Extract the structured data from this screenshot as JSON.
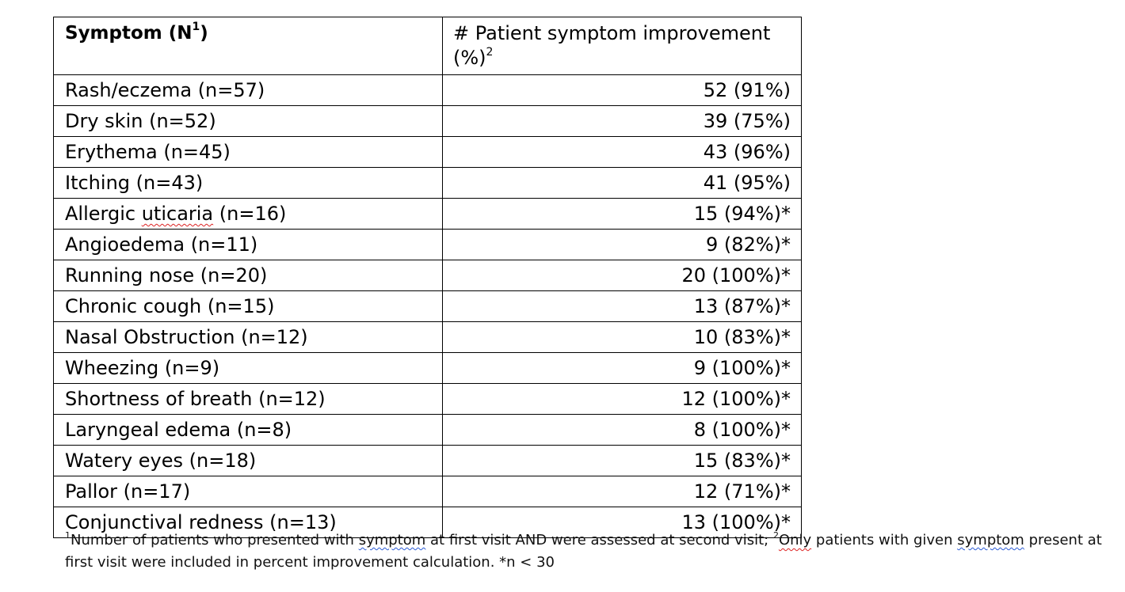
{
  "table": {
    "header": {
      "symptom_label": "Symptom (N",
      "symptom_sup": "1",
      "symptom_close": ")",
      "improvement_label": "# Patient symptom improvement (%)",
      "improvement_sup": "2"
    },
    "rows": [
      {
        "symptom": "Rash/eczema (n=57)",
        "improvement": "52 (91%)"
      },
      {
        "symptom": "Dry skin (n=52)",
        "improvement": "39 (75%)"
      },
      {
        "symptom": "Erythema (n=45)",
        "improvement": "43 (96%)"
      },
      {
        "symptom": "Itching (n=43)",
        "improvement": "41 (95%)"
      },
      {
        "symptom_pre": "Allergic ",
        "symptom_flag": "uticaria",
        "symptom_post": " (n=16)",
        "improvement": "15 (94%)*"
      },
      {
        "symptom": "Angioedema (n=11)",
        "improvement": "9 (82%)*"
      },
      {
        "symptom": "Running nose (n=20)",
        "improvement": "20 (100%)*"
      },
      {
        "symptom": "Chronic cough (n=15)",
        "improvement": "13 (87%)*"
      },
      {
        "symptom": "Nasal Obstruction (n=12)",
        "improvement": "10 (83%)*"
      },
      {
        "symptom": "Wheezing (n=9)",
        "improvement": "9 (100%)*"
      },
      {
        "symptom": "Shortness of breath (n=12)",
        "improvement": "12 (100%)*"
      },
      {
        "symptom": "Laryngeal edema (n=8)",
        "improvement": "8 (100%)*"
      },
      {
        "symptom": "Watery eyes (n=18)",
        "improvement": "15 (83%)*"
      },
      {
        "symptom": "Pallor (n=17)",
        "improvement": "12 (71%)*"
      },
      {
        "symptom": "Conjunctival redness (n=13)",
        "improvement": "13 (100%)*"
      }
    ]
  },
  "footnote": {
    "sup1": "1",
    "part1": "Number of patients who presented with ",
    "word_symptom_1": "symptom",
    "part2": " at first visit AND were assessed at second visit; ",
    "sup2": "2",
    "word_only": "Only",
    "part3": " patients with given ",
    "word_symptom_2": "symptom",
    "part4": " present at first visit were included in percent improvement calculation. *n < 30"
  },
  "colors": {
    "spellcheck_red": "#d22",
    "grammar_blue": "#2a5bd7"
  }
}
